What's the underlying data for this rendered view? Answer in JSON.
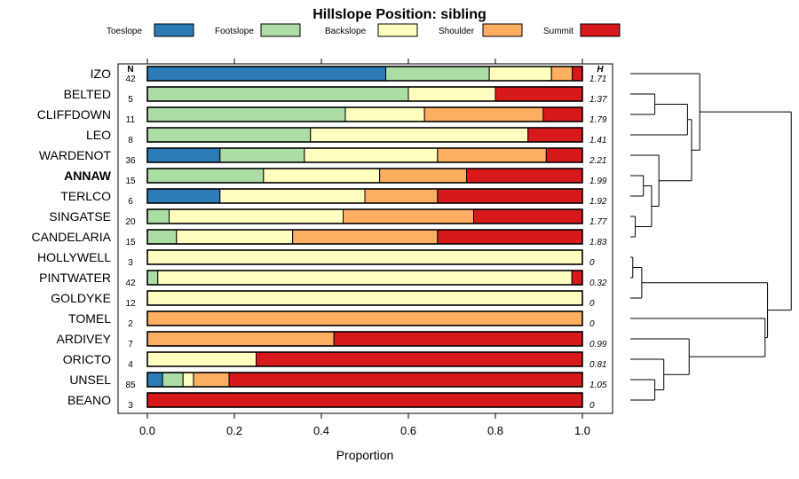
{
  "chart_data": {
    "type": "bar",
    "orientation": "horizontal",
    "stacked": true,
    "title": "Hillslope Position: sibling",
    "xlabel": "Proportion",
    "xlim": [
      0,
      1
    ],
    "xticks": [
      "0.0",
      "0.2",
      "0.4",
      "0.6",
      "0.8",
      "1.0"
    ],
    "n_header": "N",
    "h_header": "H",
    "highlighted_category": "ANNAW",
    "series": [
      {
        "name": "Toeslope",
        "color": "#2c7bb6"
      },
      {
        "name": "Footslope",
        "color": "#abdda4"
      },
      {
        "name": "Backslope",
        "color": "#ffffbf"
      },
      {
        "name": "Shoulder",
        "color": "#fdae61"
      },
      {
        "name": "Summit",
        "color": "#d7191c"
      }
    ],
    "rows": [
      {
        "name": "IZO",
        "n": "42",
        "h": "1.71",
        "values": [
          0.548,
          0.238,
          0.143,
          0.048,
          0.023
        ]
      },
      {
        "name": "BELTED",
        "n": "5",
        "h": "1.37",
        "values": [
          0,
          0.6,
          0.2,
          0,
          0.2
        ]
      },
      {
        "name": "CLIFFDOWN",
        "n": "11",
        "h": "1.79",
        "values": [
          0,
          0.455,
          0.182,
          0.273,
          0.09
        ]
      },
      {
        "name": "LEO",
        "n": "8",
        "h": "1.41",
        "values": [
          0,
          0.375,
          0.5,
          0,
          0.125
        ]
      },
      {
        "name": "WARDENOT",
        "n": "36",
        "h": "2.21",
        "values": [
          0.167,
          0.194,
          0.306,
          0.25,
          0.083
        ]
      },
      {
        "name": "ANNAW",
        "n": "15",
        "h": "1.99",
        "values": [
          0,
          0.267,
          0.267,
          0.2,
          0.266
        ]
      },
      {
        "name": "TERLCO",
        "n": "6",
        "h": "1.92",
        "values": [
          0.167,
          0,
          0.333,
          0.167,
          0.333
        ]
      },
      {
        "name": "SINGATSE",
        "n": "20",
        "h": "1.77",
        "values": [
          0,
          0.05,
          0.4,
          0.3,
          0.25
        ]
      },
      {
        "name": "CANDELARIA",
        "n": "15",
        "h": "1.83",
        "values": [
          0,
          0.067,
          0.267,
          0.333,
          0.333
        ]
      },
      {
        "name": "HOLLYWELL",
        "n": "3",
        "h": "0",
        "values": [
          0,
          0,
          1,
          0,
          0
        ]
      },
      {
        "name": "PINTWATER",
        "n": "42",
        "h": "0.32",
        "values": [
          0,
          0.024,
          0.952,
          0,
          0.024
        ]
      },
      {
        "name": "GOLDYKE",
        "n": "12",
        "h": "0",
        "values": [
          0,
          0,
          1,
          0,
          0
        ]
      },
      {
        "name": "TOMEL",
        "n": "2",
        "h": "0",
        "values": [
          0,
          0,
          0,
          1,
          0
        ]
      },
      {
        "name": "ARDIVEY",
        "n": "7",
        "h": "0.99",
        "values": [
          0,
          0,
          0,
          0.429,
          0.571
        ]
      },
      {
        "name": "ORICTO",
        "n": "4",
        "h": "0.81",
        "values": [
          0,
          0,
          0.25,
          0,
          0.75
        ]
      },
      {
        "name": "UNSEL",
        "n": "85",
        "h": "1.05",
        "values": [
          0.035,
          0.047,
          0.024,
          0.082,
          0.812
        ]
      },
      {
        "name": "BEANO",
        "n": "3",
        "h": "0",
        "values": [
          0,
          0,
          0,
          0,
          1
        ]
      }
    ],
    "dendrogram": {
      "type": "hierarchical-clustering",
      "leaf_order": [
        "IZO",
        "BELTED",
        "CLIFFDOWN",
        "LEO",
        "WARDENOT",
        "ANNAW",
        "TERLCO",
        "SINGATSE",
        "CANDELARIA",
        "HOLLYWELL",
        "PINTWATER",
        "GOLDYKE",
        "TOMEL",
        "ARDIVEY",
        "ORICTO",
        "UNSEL",
        "BEANO"
      ],
      "merges": [
        {
          "a": "BELTED",
          "b": "CLIFFDOWN",
          "height": 0.3
        },
        {
          "a": "ANNAW",
          "b": "TERLCO",
          "height": 0.16
        },
        {
          "a": "SINGATSE",
          "b": "CANDELARIA",
          "height": 0.06
        },
        {
          "a": "HOLLYWELL",
          "b": "PINTWATER",
          "height": 0.03
        },
        {
          "a": "UNSEL",
          "b": "BEANO",
          "height": 0.3
        },
        {
          "a": "M4",
          "b": "GOLDYKE",
          "height": 0.14
        },
        {
          "a": "M3",
          "b": "M2",
          "height": 0.26
        },
        {
          "a": "M1",
          "b": "LEO",
          "height": 0.7
        },
        {
          "a": "WARDENOT",
          "b": "M7",
          "height": 0.35
        },
        {
          "a": "ORICTO",
          "b": "M5",
          "height": 0.41
        },
        {
          "a": "M8",
          "b": "M9",
          "height": 0.75
        },
        {
          "a": "ARDIVEY",
          "b": "M10",
          "height": 0.72
        },
        {
          "a": "IZO",
          "b": "M11",
          "height": 0.85
        },
        {
          "a": "TOMEL",
          "b": "M12",
          "height": 1.65
        },
        {
          "a": "M6",
          "b": "M14",
          "height": 1.68
        },
        {
          "a": "M13",
          "b": "M15",
          "height": 1.97
        }
      ]
    }
  }
}
